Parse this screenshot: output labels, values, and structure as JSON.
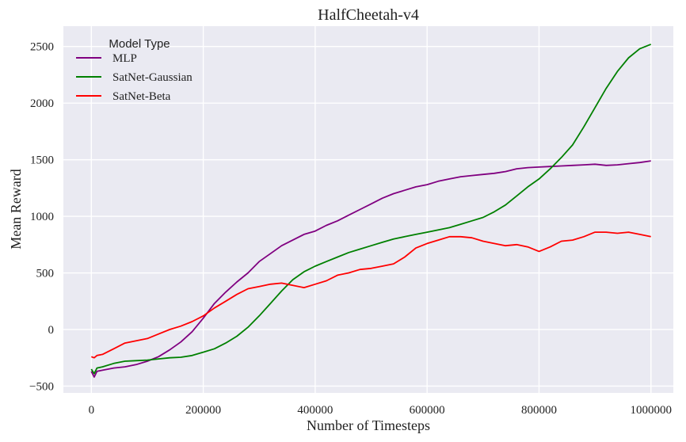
{
  "chart_data": {
    "type": "line",
    "title": "HalfCheetah-v4",
    "xlabel": "Number of Timesteps",
    "ylabel": "Mean Reward",
    "xlim": [
      -50000,
      1040000
    ],
    "ylim": [
      -560,
      2680
    ],
    "xticks": [
      0,
      200000,
      400000,
      600000,
      800000,
      1000000
    ],
    "xtick_labels": [
      "0",
      "200000",
      "400000",
      "600000",
      "800000",
      "1000000"
    ],
    "yticks": [
      -500,
      0,
      500,
      1000,
      1500,
      2000,
      2500
    ],
    "ytick_labels": [
      "−500",
      "0",
      "500",
      "1000",
      "1500",
      "2000",
      "2500"
    ],
    "grid": true,
    "legend": {
      "title": "Model Type",
      "placement": "top-left"
    },
    "series": [
      {
        "name": "MLP",
        "color": "#800080",
        "x": [
          0,
          5000,
          10000,
          20000,
          40000,
          60000,
          80000,
          100000,
          120000,
          140000,
          160000,
          180000,
          200000,
          220000,
          240000,
          260000,
          280000,
          300000,
          320000,
          340000,
          360000,
          380000,
          400000,
          420000,
          440000,
          460000,
          480000,
          500000,
          520000,
          540000,
          560000,
          580000,
          600000,
          620000,
          640000,
          660000,
          680000,
          700000,
          720000,
          740000,
          760000,
          780000,
          800000,
          820000,
          840000,
          860000,
          880000,
          900000,
          920000,
          940000,
          960000,
          980000,
          1000000
        ],
        "y": [
          -370,
          -420,
          -370,
          -360,
          -340,
          -330,
          -310,
          -280,
          -240,
          -180,
          -110,
          -20,
          100,
          230,
          330,
          420,
          500,
          600,
          670,
          740,
          790,
          840,
          870,
          920,
          960,
          1010,
          1060,
          1110,
          1160,
          1200,
          1230,
          1260,
          1280,
          1310,
          1330,
          1350,
          1360,
          1370,
          1380,
          1395,
          1420,
          1430,
          1435,
          1440,
          1445,
          1450,
          1455,
          1460,
          1450,
          1455,
          1465,
          1475,
          1490
        ]
      },
      {
        "name": "SatNet-Gaussian",
        "color": "#008000",
        "x": [
          0,
          5000,
          10000,
          20000,
          40000,
          60000,
          80000,
          100000,
          120000,
          140000,
          160000,
          180000,
          200000,
          220000,
          240000,
          260000,
          280000,
          300000,
          320000,
          340000,
          360000,
          380000,
          400000,
          420000,
          440000,
          460000,
          480000,
          500000,
          520000,
          540000,
          560000,
          580000,
          600000,
          620000,
          640000,
          660000,
          680000,
          700000,
          720000,
          740000,
          760000,
          780000,
          800000,
          820000,
          840000,
          860000,
          880000,
          900000,
          920000,
          940000,
          960000,
          980000,
          1000000
        ],
        "y": [
          -350,
          -390,
          -340,
          -330,
          -300,
          -280,
          -275,
          -270,
          -260,
          -250,
          -245,
          -230,
          -200,
          -170,
          -120,
          -60,
          20,
          120,
          230,
          340,
          440,
          510,
          560,
          600,
          640,
          680,
          710,
          740,
          770,
          800,
          820,
          840,
          860,
          880,
          900,
          930,
          960,
          990,
          1040,
          1100,
          1180,
          1260,
          1330,
          1420,
          1520,
          1630,
          1790,
          1960,
          2130,
          2280,
          2400,
          2480,
          2520
        ]
      },
      {
        "name": "SatNet-Beta",
        "color": "#ff0000",
        "x": [
          0,
          5000,
          10000,
          20000,
          40000,
          60000,
          80000,
          100000,
          120000,
          140000,
          160000,
          180000,
          200000,
          220000,
          240000,
          260000,
          280000,
          300000,
          320000,
          340000,
          360000,
          380000,
          400000,
          420000,
          440000,
          460000,
          480000,
          500000,
          520000,
          540000,
          560000,
          580000,
          600000,
          620000,
          640000,
          660000,
          680000,
          700000,
          720000,
          740000,
          760000,
          780000,
          800000,
          820000,
          840000,
          860000,
          880000,
          900000,
          920000,
          940000,
          960000,
          980000,
          1000000
        ],
        "y": [
          -240,
          -250,
          -230,
          -220,
          -170,
          -120,
          -100,
          -80,
          -40,
          0,
          30,
          70,
          120,
          190,
          250,
          310,
          360,
          380,
          400,
          410,
          390,
          370,
          400,
          430,
          480,
          500,
          530,
          540,
          560,
          580,
          640,
          720,
          760,
          790,
          820,
          820,
          810,
          780,
          760,
          740,
          750,
          730,
          690,
          730,
          780,
          790,
          820,
          860,
          860,
          850,
          860,
          840,
          820
        ]
      }
    ]
  }
}
